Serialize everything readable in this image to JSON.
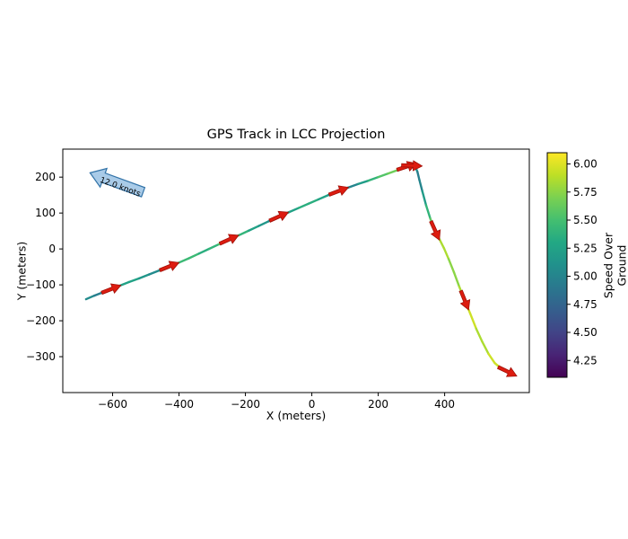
{
  "chart_data": {
    "type": "line",
    "title": "GPS Track in LCC Projection",
    "xlabel": "X (meters)",
    "ylabel": "Y (meters)",
    "xlim": [
      -750,
      655
    ],
    "ylim": [
      -400,
      278
    ],
    "xticks": [
      -600,
      -400,
      -200,
      0,
      200,
      400
    ],
    "yticks": [
      200,
      100,
      0,
      -100,
      -200,
      -300
    ],
    "grid": false,
    "legend": false,
    "colorbar": {
      "label": "Speed Over Ground",
      "vmin": 4.1,
      "vmax": 6.1,
      "ticks": [
        4.25,
        4.5,
        4.75,
        5.0,
        5.25,
        5.5,
        5.75,
        6.0
      ],
      "orientation": "vertical",
      "position": "right"
    },
    "colormap": {
      "name": "viridis",
      "stops": [
        "#440154",
        "#482475",
        "#414487",
        "#355f8d",
        "#2a788e",
        "#21918c",
        "#22a884",
        "#44bf70",
        "#7ad151",
        "#bddf26",
        "#fde725"
      ]
    },
    "annotation": {
      "text": "12.0 knots",
      "x": -668,
      "y": 212,
      "rotation_deg": 20,
      "fill": "#a9cbe8",
      "edge": "#3273a8"
    },
    "track": {
      "x": [
        -680,
        -655,
        -630,
        -605,
        -580,
        -550,
        -520,
        -490,
        -460,
        -430,
        -400,
        -370,
        -340,
        -310,
        -280,
        -250,
        -220,
        -190,
        -160,
        -130,
        -100,
        -70,
        -40,
        -10,
        20,
        50,
        80,
        110,
        140,
        170,
        200,
        230,
        260,
        285,
        300,
        312,
        318,
        324,
        333,
        344,
        357,
        371,
        385,
        398,
        412,
        428,
        444,
        460,
        477,
        495,
        513,
        532,
        551,
        570,
        588
      ],
      "y": [
        -140,
        -130,
        -121,
        -112,
        -103,
        -92,
        -82,
        -71,
        -60,
        -49,
        -38,
        -26,
        -13,
        0,
        13,
        26,
        38,
        51,
        64,
        77,
        90,
        102,
        114,
        126,
        138,
        150,
        161,
        171,
        181,
        190,
        200,
        210,
        220,
        229,
        232,
        228,
        215,
        192,
        160,
        122,
        84,
        52,
        26,
        2,
        -28,
        -65,
        -105,
        -142,
        -180,
        -222,
        -258,
        -292,
        -318,
        -333,
        -341
      ],
      "speed": [
        5.1,
        5.0,
        4.9,
        5.0,
        5.2,
        5.3,
        5.2,
        5.1,
        5.0,
        5.2,
        5.4,
        5.5,
        5.4,
        5.3,
        5.5,
        5.6,
        5.5,
        5.3,
        5.2,
        5.1,
        5.0,
        5.2,
        5.3,
        5.4,
        5.3,
        5.2,
        5.0,
        4.9,
        5.1,
        5.3,
        5.5,
        5.6,
        5.7,
        5.6,
        5.4,
        5.2,
        5.0,
        4.9,
        5.1,
        5.3,
        5.5,
        5.7,
        5.8,
        5.9,
        5.8,
        5.7,
        5.8,
        5.9,
        6.0,
        5.9,
        5.8,
        5.9,
        6.0,
        5.9,
        5.8
      ]
    },
    "arrows": {
      "indices": [
        3,
        9,
        15,
        20,
        26,
        33,
        34,
        41,
        47,
        54
      ],
      "color": "#dd1c10",
      "edge": "#a01008"
    }
  }
}
